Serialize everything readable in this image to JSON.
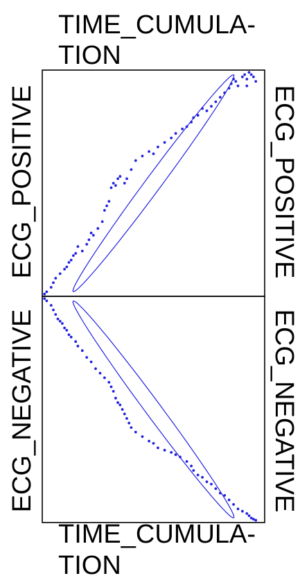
{
  "chart_data": {
    "type": "scatter",
    "layout": "scatterplot-matrix",
    "x_variable": [
      "TIME_CUMULA-",
      "TION"
    ],
    "y_variables": [
      "ECG_POSITIVE",
      "ECG_NEGATIVE"
    ],
    "grid": false,
    "colors": {
      "points": "#2020e0",
      "ellipse": "#2020e0",
      "frame": "#000000"
    },
    "panels": [
      {
        "name": "ECG_POSITIVE vs TIME_CUMULATION",
        "xlim": [
          0,
          1
        ],
        "ylim": [
          0,
          1
        ],
        "ellipse": {
          "center": [
            0.5,
            0.5
          ],
          "major_axis_angle_deg": 53,
          "semi_major": 0.6,
          "semi_minor": 0.035
        },
        "points": [
          [
            0.01,
            0.01
          ],
          [
            0.02,
            0.02
          ],
          [
            0.04,
            0.04
          ],
          [
            0.05,
            0.06
          ],
          [
            0.06,
            0.08
          ],
          [
            0.08,
            0.1
          ],
          [
            0.1,
            0.12
          ],
          [
            0.11,
            0.13
          ],
          [
            0.12,
            0.15
          ],
          [
            0.13,
            0.16
          ],
          [
            0.14,
            0.18
          ],
          [
            0.15,
            0.19
          ],
          [
            0.16,
            0.22
          ],
          [
            0.18,
            0.2
          ],
          [
            0.2,
            0.23
          ],
          [
            0.21,
            0.25
          ],
          [
            0.22,
            0.28
          ],
          [
            0.23,
            0.27
          ],
          [
            0.25,
            0.3
          ],
          [
            0.27,
            0.33
          ],
          [
            0.28,
            0.38
          ],
          [
            0.29,
            0.4
          ],
          [
            0.3,
            0.42
          ],
          [
            0.31,
            0.48
          ],
          [
            0.32,
            0.5
          ],
          [
            0.33,
            0.49
          ],
          [
            0.34,
            0.52
          ],
          [
            0.35,
            0.53
          ],
          [
            0.37,
            0.5
          ],
          [
            0.38,
            0.52
          ],
          [
            0.4,
            0.56
          ],
          [
            0.42,
            0.6
          ],
          [
            0.45,
            0.62
          ],
          [
            0.48,
            0.64
          ],
          [
            0.5,
            0.63
          ],
          [
            0.52,
            0.66
          ],
          [
            0.55,
            0.68
          ],
          [
            0.58,
            0.7
          ],
          [
            0.6,
            0.72
          ],
          [
            0.63,
            0.74
          ],
          [
            0.65,
            0.75
          ],
          [
            0.67,
            0.77
          ],
          [
            0.68,
            0.79
          ],
          [
            0.7,
            0.8
          ],
          [
            0.72,
            0.83
          ],
          [
            0.74,
            0.82
          ],
          [
            0.76,
            0.84
          ],
          [
            0.78,
            0.86
          ],
          [
            0.8,
            0.88
          ],
          [
            0.82,
            0.9
          ],
          [
            0.84,
            0.92
          ],
          [
            0.85,
            0.94
          ],
          [
            0.86,
            0.96
          ],
          [
            0.87,
            0.95
          ],
          [
            0.88,
            0.93
          ],
          [
            0.9,
            0.97
          ],
          [
            0.91,
            0.98
          ],
          [
            0.92,
            0.96
          ],
          [
            0.93,
            0.99
          ],
          [
            0.94,
            0.98
          ],
          [
            0.95,
            0.97
          ],
          [
            0.92,
            0.93
          ],
          [
            0.96,
            0.95
          ]
        ]
      },
      {
        "name": "ECG_NEGATIVE vs TIME_CUMULATION",
        "xlim": [
          0,
          1
        ],
        "ylim": [
          0,
          1
        ],
        "ellipse": {
          "center": [
            0.5,
            0.5
          ],
          "major_axis_angle_deg": -53,
          "semi_major": 0.6,
          "semi_minor": 0.035
        },
        "points": [
          [
            0.01,
            0.99
          ],
          [
            0.02,
            0.98
          ],
          [
            0.04,
            0.96
          ],
          [
            0.05,
            0.94
          ],
          [
            0.06,
            0.92
          ],
          [
            0.07,
            0.9
          ],
          [
            0.08,
            0.89
          ],
          [
            0.09,
            0.88
          ],
          [
            0.1,
            0.86
          ],
          [
            0.11,
            0.85
          ],
          [
            0.12,
            0.83
          ],
          [
            0.13,
            0.82
          ],
          [
            0.15,
            0.8
          ],
          [
            0.16,
            0.78
          ],
          [
            0.18,
            0.76
          ],
          [
            0.2,
            0.73
          ],
          [
            0.22,
            0.71
          ],
          [
            0.24,
            0.68
          ],
          [
            0.26,
            0.66
          ],
          [
            0.28,
            0.64
          ],
          [
            0.3,
            0.62
          ],
          [
            0.31,
            0.6
          ],
          [
            0.32,
            0.58
          ],
          [
            0.33,
            0.55
          ],
          [
            0.34,
            0.53
          ],
          [
            0.35,
            0.52
          ],
          [
            0.36,
            0.5
          ],
          [
            0.37,
            0.48
          ],
          [
            0.38,
            0.46
          ],
          [
            0.39,
            0.44
          ],
          [
            0.4,
            0.42
          ],
          [
            0.42,
            0.4
          ],
          [
            0.45,
            0.38
          ],
          [
            0.48,
            0.36
          ],
          [
            0.5,
            0.35
          ],
          [
            0.52,
            0.33
          ],
          [
            0.55,
            0.32
          ],
          [
            0.58,
            0.31
          ],
          [
            0.6,
            0.3
          ],
          [
            0.62,
            0.29
          ],
          [
            0.65,
            0.27
          ],
          [
            0.67,
            0.25
          ],
          [
            0.68,
            0.23
          ],
          [
            0.7,
            0.21
          ],
          [
            0.72,
            0.2
          ],
          [
            0.74,
            0.18
          ],
          [
            0.76,
            0.17
          ],
          [
            0.78,
            0.15
          ],
          [
            0.8,
            0.13
          ],
          [
            0.82,
            0.12
          ],
          [
            0.84,
            0.1
          ],
          [
            0.86,
            0.08
          ],
          [
            0.88,
            0.06
          ],
          [
            0.9,
            0.05
          ],
          [
            0.92,
            0.04
          ],
          [
            0.93,
            0.03
          ],
          [
            0.94,
            0.02
          ],
          [
            0.95,
            0.015
          ],
          [
            0.96,
            0.01
          ]
        ]
      }
    ]
  }
}
